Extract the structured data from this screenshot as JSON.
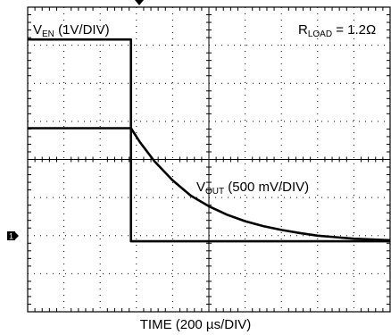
{
  "chart_data": {
    "type": "line",
    "x_divisions": 10,
    "y_divisions": 8,
    "grid": true,
    "xlabel": "TIME (200 µs/DIV)",
    "annotations": {
      "rload": {
        "main": "R",
        "sub": "LOAD",
        "tail": " = 1.2Ω"
      },
      "ch1": {
        "main": "V",
        "sub": "EN",
        "tail": " (1V/DIV)"
      },
      "ch2": {
        "main": "V",
        "sub": "OUT",
        "tail": " (500 mV/DIV)"
      }
    },
    "reference_marker": "1",
    "series": [
      {
        "label": "V_EN",
        "x_units": "divisions",
        "y_units": "divisions above bottom",
        "x": [
          0,
          2.85,
          2.85,
          10
        ],
        "y": [
          7.15,
          7.15,
          1.85,
          1.85
        ]
      },
      {
        "label": "V_OUT",
        "x_units": "divisions",
        "y_units": "divisions above bottom",
        "x": [
          0,
          2.85,
          3.1,
          3.5,
          4,
          4.5,
          5,
          5.5,
          6,
          6.5,
          7,
          7.5,
          8,
          8.5,
          9,
          9.5,
          10
        ],
        "y": [
          4.82,
          4.82,
          4.45,
          3.95,
          3.45,
          3.05,
          2.77,
          2.55,
          2.38,
          2.25,
          2.15,
          2.07,
          2.0,
          1.96,
          1.92,
          1.9,
          1.88
        ]
      }
    ]
  }
}
